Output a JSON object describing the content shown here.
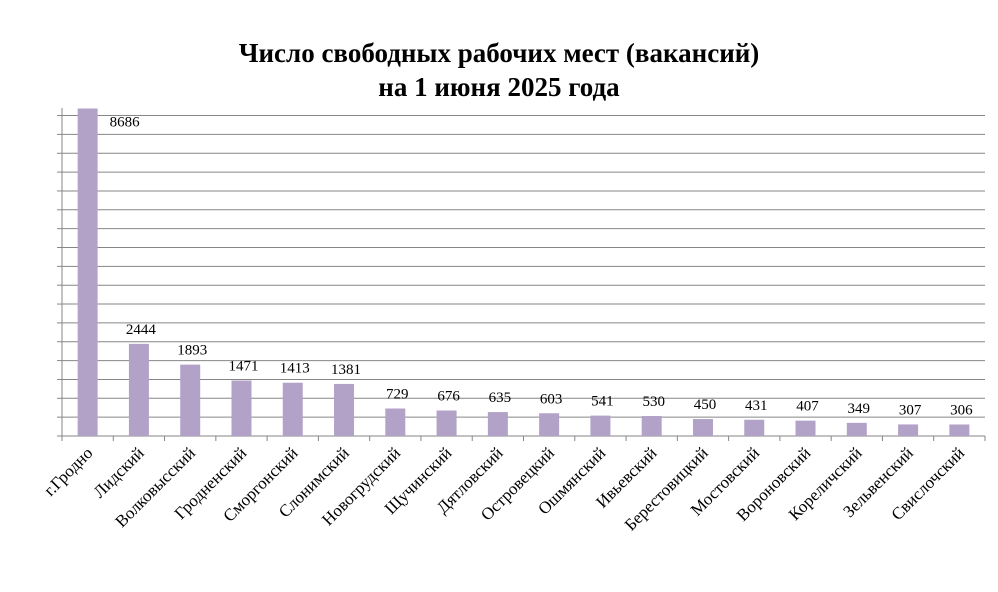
{
  "chart_data": {
    "type": "bar",
    "title_lines": [
      "Число свободных рабочих мест (вакансий)",
      "на 1 июня 2025 года"
    ],
    "categories": [
      "г.Гродно",
      "Лидский",
      "Волковысский",
      "Гродненский",
      "Сморгонский",
      "Слонимский",
      "Новогрудский",
      "Щучинский",
      "Дятловский",
      "Островецкий",
      "Ошмянский",
      "Ивьевский",
      "Берестовицкий",
      "Мостовский",
      "Вороновский",
      "Кореличский",
      "Зельвенский",
      "Свислочский"
    ],
    "values": [
      8686,
      2444,
      1893,
      1471,
      1413,
      1381,
      729,
      676,
      635,
      603,
      541,
      530,
      450,
      431,
      407,
      349,
      307,
      306
    ],
    "data_labels": [
      "8686",
      "2444",
      "1893",
      "1471",
      "1413",
      "1381",
      "729",
      "676",
      "635",
      "603",
      "541",
      "530",
      "450",
      "431",
      "407",
      "349",
      "307",
      "306"
    ],
    "ylim": [
      0,
      8700
    ],
    "gridline_step": 500,
    "grid": true,
    "y_tick_labels_shown": false,
    "legend": "none",
    "bar_color": "#b3a2c7",
    "grid_color": "#868686"
  }
}
